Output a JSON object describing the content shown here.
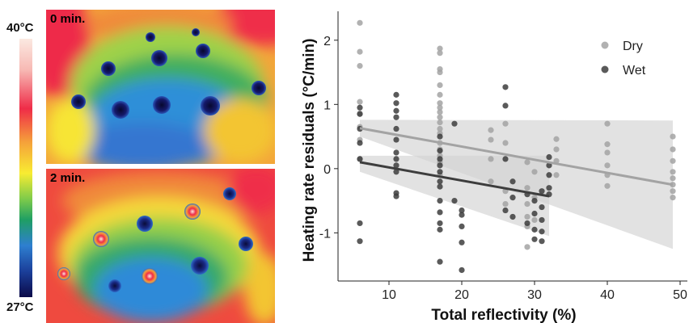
{
  "thermal": {
    "scale_max": "40°C",
    "scale_min": "27°C",
    "panels": [
      {
        "label": "0 min."
      },
      {
        "label": "2 min."
      }
    ]
  },
  "chart_data": {
    "type": "scatter",
    "xlabel": "Total reflectivity (%)",
    "ylabel": "Heating rate residuals (°C/min)",
    "xlim": [
      3,
      51
    ],
    "ylim": [
      -1.75,
      2.45
    ],
    "xticks": [
      10,
      20,
      30,
      40,
      50
    ],
    "yticks": [
      -1,
      0,
      1,
      2
    ],
    "grid": false,
    "legend": "top-right",
    "series": [
      {
        "name": "Dry",
        "color": "#a3a3a3",
        "fit": {
          "x": [
            6,
            49
          ],
          "y": [
            0.63,
            -0.25
          ]
        },
        "ci_band": {
          "x": [
            6,
            49
          ],
          "lower": [
            0.5,
            -1.25
          ],
          "upper": [
            0.76,
            0.75
          ]
        },
        "points": [
          [
            6,
            2.27
          ],
          [
            6,
            1.82
          ],
          [
            6,
            1.6
          ],
          [
            6,
            1.04
          ],
          [
            6,
            0.86
          ],
          [
            6,
            0.65
          ],
          [
            6,
            0.45
          ],
          [
            6,
            0.15
          ],
          [
            17,
            1.87
          ],
          [
            17,
            1.8
          ],
          [
            17,
            1.55
          ],
          [
            17,
            1.5
          ],
          [
            17,
            1.3
          ],
          [
            17,
            1.15
          ],
          [
            17,
            1.02
          ],
          [
            17,
            0.95
          ],
          [
            17,
            0.88
          ],
          [
            17,
            0.8
          ],
          [
            17,
            0.72
          ],
          [
            17,
            0.62
          ],
          [
            17,
            0.55
          ],
          [
            17,
            0.4
          ],
          [
            17,
            0.3
          ],
          [
            17,
            0.2
          ],
          [
            17,
            0.1
          ],
          [
            17,
            -0.1
          ],
          [
            24,
            0.6
          ],
          [
            24,
            0.45
          ],
          [
            24,
            0.15
          ],
          [
            24,
            -0.2
          ],
          [
            26,
            0.7
          ],
          [
            26,
            0.4
          ],
          [
            26,
            -0.35
          ],
          [
            26,
            -0.55
          ],
          [
            29,
            0.1
          ],
          [
            29,
            -0.3
          ],
          [
            29,
            -0.55
          ],
          [
            29,
            -0.75
          ],
          [
            29,
            -0.9
          ],
          [
            29,
            -1.22
          ],
          [
            30,
            -0.05
          ],
          [
            30,
            -0.45
          ],
          [
            30,
            -0.8
          ],
          [
            33,
            0.46
          ],
          [
            33,
            0.3
          ],
          [
            33,
            0.12
          ],
          [
            33,
            -0.1
          ],
          [
            40,
            0.7
          ],
          [
            40,
            0.38
          ],
          [
            40,
            0.25
          ],
          [
            40,
            0.05
          ],
          [
            40,
            -0.1
          ],
          [
            40,
            -0.27
          ],
          [
            49,
            0.5
          ],
          [
            49,
            0.3
          ],
          [
            49,
            0.12
          ],
          [
            49,
            -0.05
          ],
          [
            49,
            -0.15
          ],
          [
            49,
            -0.25
          ],
          [
            49,
            -0.35
          ],
          [
            49,
            -0.45
          ]
        ]
      },
      {
        "name": "Wet",
        "color": "#3d3d3d",
        "fit": {
          "x": [
            6,
            32
          ],
          "y": [
            0.1,
            -0.43
          ]
        },
        "ci_band": {
          "x": [
            6,
            32
          ],
          "lower": [
            -0.05,
            -1.05
          ],
          "upper": [
            0.2,
            0.2
          ]
        },
        "points": [
          [
            6,
            0.95
          ],
          [
            6,
            0.85
          ],
          [
            6,
            0.62
          ],
          [
            6,
            0.4
          ],
          [
            6,
            0.15
          ],
          [
            6,
            -0.85
          ],
          [
            6,
            -1.13
          ],
          [
            11,
            1.15
          ],
          [
            11,
            1.02
          ],
          [
            11,
            0.9
          ],
          [
            11,
            0.8
          ],
          [
            11,
            0.62
          ],
          [
            11,
            0.45
          ],
          [
            11,
            0.25
          ],
          [
            11,
            0.15
          ],
          [
            11,
            0.05
          ],
          [
            11,
            -0.05
          ],
          [
            11,
            -0.38
          ],
          [
            11,
            -0.43
          ],
          [
            17,
            0.5
          ],
          [
            17,
            0.28
          ],
          [
            17,
            0.15
          ],
          [
            17,
            0.05
          ],
          [
            17,
            -0.05
          ],
          [
            17,
            -0.2
          ],
          [
            17,
            -0.28
          ],
          [
            17,
            -0.5
          ],
          [
            17,
            -0.68
          ],
          [
            17,
            -0.85
          ],
          [
            17,
            -0.95
          ],
          [
            17,
            -1.45
          ],
          [
            19,
            0.7
          ],
          [
            19,
            -0.5
          ],
          [
            20,
            -0.65
          ],
          [
            20,
            -0.72
          ],
          [
            20,
            -0.9
          ],
          [
            20,
            -1.15
          ],
          [
            20,
            -1.58
          ],
          [
            26,
            1.27
          ],
          [
            26,
            0.98
          ],
          [
            26,
            0.15
          ],
          [
            26,
            -0.65
          ],
          [
            27,
            -0.2
          ],
          [
            27,
            -0.45
          ],
          [
            27,
            -0.75
          ],
          [
            29,
            -0.4
          ],
          [
            29,
            -0.85
          ],
          [
            30,
            -0.5
          ],
          [
            30,
            -0.7
          ],
          [
            30,
            -0.95
          ],
          [
            30,
            -1.1
          ],
          [
            31,
            -0.35
          ],
          [
            31,
            -0.6
          ],
          [
            31,
            -0.8
          ],
          [
            31,
            -0.98
          ],
          [
            31,
            -1.13
          ],
          [
            32,
            0.18
          ],
          [
            32,
            0.05
          ],
          [
            32,
            -0.1
          ],
          [
            32,
            -0.3
          ],
          [
            32,
            -0.4
          ]
        ]
      }
    ]
  }
}
